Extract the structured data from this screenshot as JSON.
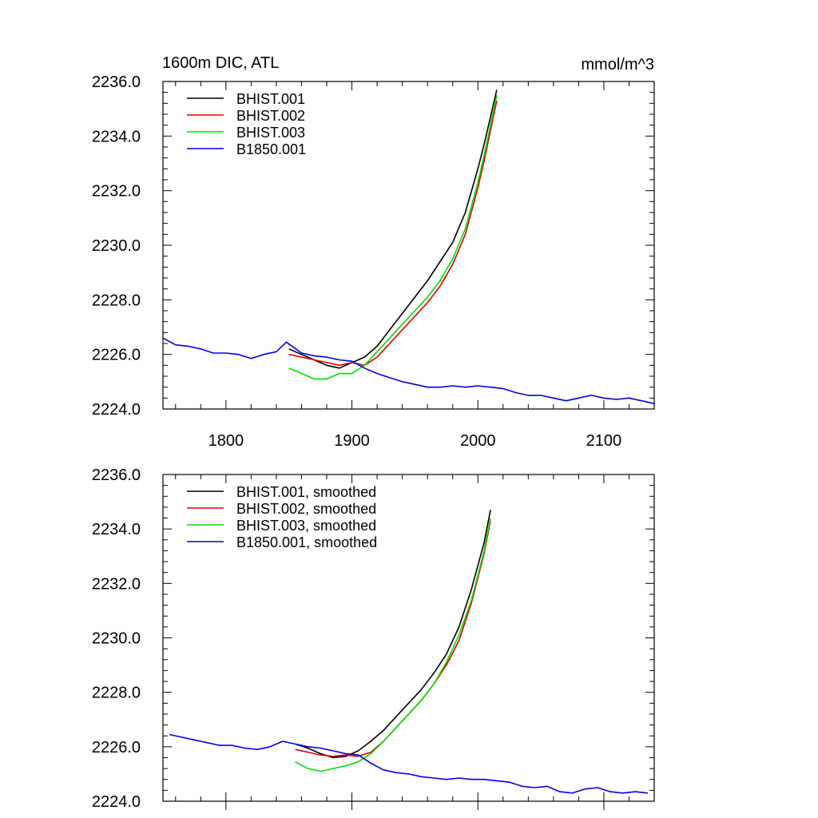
{
  "header": {
    "left_title": "1600m DIC, ATL",
    "right_title": "mmol/m^3"
  },
  "colors": {
    "BHIST.001": "#000000",
    "BHIST.002": "#e00000",
    "BHIST.003": "#00e000",
    "B1850.001": "#0000e0"
  },
  "chart_data": [
    {
      "type": "line",
      "title": "",
      "xlim": [
        1750,
        2140
      ],
      "ylim": [
        2224.0,
        2236.0
      ],
      "xticks": [
        1800,
        1900,
        2000,
        2100
      ],
      "xtick_labels": [
        "1800",
        "1900",
        "2000",
        "2100"
      ],
      "yticks": [
        2224.0,
        2226.0,
        2228.0,
        2230.0,
        2232.0,
        2234.0,
        2236.0
      ],
      "ytick_labels": [
        "2224.0",
        "2226.0",
        "2228.0",
        "2230.0",
        "2232.0",
        "2234.0",
        "2236.0"
      ],
      "legend": "top-left",
      "series": [
        {
          "name": "BHIST.001",
          "color": "#000000",
          "x": [
            1850,
            1860,
            1870,
            1880,
            1890,
            1900,
            1910,
            1920,
            1930,
            1940,
            1950,
            1960,
            1970,
            1980,
            1990,
            2000,
            2005,
            2010,
            2015
          ],
          "y": [
            2226.2,
            2226.0,
            2225.8,
            2225.6,
            2225.5,
            2225.7,
            2225.9,
            2226.3,
            2226.9,
            2227.5,
            2228.1,
            2228.7,
            2229.4,
            2230.1,
            2231.2,
            2232.8,
            2233.7,
            2234.7,
            2235.7
          ]
        },
        {
          "name": "BHIST.002",
          "color": "#e00000",
          "x": [
            1850,
            1860,
            1870,
            1880,
            1890,
            1900,
            1910,
            1920,
            1930,
            1940,
            1950,
            1960,
            1970,
            1980,
            1990,
            2000,
            2005,
            2010,
            2015
          ],
          "y": [
            2226.0,
            2225.9,
            2225.8,
            2225.7,
            2225.6,
            2225.7,
            2225.6,
            2225.9,
            2226.4,
            2226.9,
            2227.4,
            2227.9,
            2228.5,
            2229.3,
            2230.4,
            2232.1,
            2233.1,
            2234.2,
            2235.3
          ]
        },
        {
          "name": "BHIST.003",
          "color": "#00e000",
          "x": [
            1850,
            1860,
            1870,
            1880,
            1890,
            1900,
            1910,
            1920,
            1930,
            1940,
            1950,
            1960,
            1970,
            1980,
            1990,
            2000,
            2005,
            2010,
            2015
          ],
          "y": [
            2225.5,
            2225.3,
            2225.1,
            2225.1,
            2225.3,
            2225.3,
            2225.6,
            2226.1,
            2226.6,
            2227.1,
            2227.6,
            2228.1,
            2228.7,
            2229.5,
            2230.6,
            2232.3,
            2233.3,
            2234.4,
            2235.5
          ]
        },
        {
          "name": "B1850.001",
          "color": "#0000e0",
          "x": [
            1750,
            1760,
            1770,
            1780,
            1790,
            1800,
            1810,
            1820,
            1830,
            1840,
            1848,
            1860,
            1870,
            1880,
            1890,
            1900,
            1910,
            1920,
            1930,
            1940,
            1950,
            1960,
            1970,
            1980,
            1990,
            2000,
            2010,
            2020,
            2030,
            2040,
            2050,
            2060,
            2070,
            2080,
            2090,
            2100,
            2110,
            2120,
            2130,
            2140
          ],
          "y": [
            2226.6,
            2226.35,
            2226.3,
            2226.2,
            2226.05,
            2226.05,
            2226.0,
            2225.85,
            2226.0,
            2226.1,
            2226.45,
            2226.05,
            2225.95,
            2225.9,
            2225.8,
            2225.75,
            2225.5,
            2225.3,
            2225.15,
            2225.0,
            2224.9,
            2224.8,
            2224.8,
            2224.85,
            2224.8,
            2224.85,
            2224.8,
            2224.75,
            2224.6,
            2224.5,
            2224.5,
            2224.4,
            2224.3,
            2224.4,
            2224.5,
            2224.4,
            2224.35,
            2224.4,
            2224.3,
            2224.2
          ]
        }
      ]
    },
    {
      "type": "line",
      "title": "",
      "xlim": [
        1750,
        2140
      ],
      "ylim": [
        2224.0,
        2236.0
      ],
      "xticks": [
        1800,
        1900,
        2000,
        2100
      ],
      "yticks": [
        2224.0,
        2226.0,
        2228.0,
        2230.0,
        2232.0,
        2234.0,
        2236.0
      ],
      "ytick_labels": [
        "2224.0",
        "2226.0",
        "2228.0",
        "2230.0",
        "2232.0",
        "2234.0",
        "2236.0"
      ],
      "legend": "top-left",
      "series": [
        {
          "name": "BHIST.001, smoothed",
          "color": "#000000",
          "x": [
            1855,
            1865,
            1875,
            1885,
            1895,
            1905,
            1915,
            1925,
            1935,
            1945,
            1955,
            1965,
            1975,
            1985,
            1995,
            2005,
            2010
          ],
          "y": [
            2226.1,
            2225.95,
            2225.75,
            2225.6,
            2225.65,
            2225.85,
            2226.2,
            2226.6,
            2227.1,
            2227.6,
            2228.1,
            2228.7,
            2229.4,
            2230.4,
            2231.8,
            2233.5,
            2234.7
          ]
        },
        {
          "name": "BHIST.002, smoothed",
          "color": "#e00000",
          "x": [
            1855,
            1865,
            1875,
            1885,
            1895,
            1905,
            1915,
            1925,
            1935,
            1945,
            1955,
            1965,
            1975,
            1985,
            1995,
            2005,
            2010
          ],
          "y": [
            2225.9,
            2225.8,
            2225.7,
            2225.65,
            2225.7,
            2225.65,
            2225.8,
            2226.2,
            2226.7,
            2227.2,
            2227.7,
            2228.3,
            2229.0,
            2229.9,
            2231.3,
            2233.1,
            2234.3
          ]
        },
        {
          "name": "BHIST.003, smoothed",
          "color": "#00e000",
          "x": [
            1855,
            1865,
            1875,
            1885,
            1895,
            1905,
            1915,
            1925,
            1935,
            1945,
            1955,
            1965,
            1975,
            1985,
            1995,
            2005,
            2010
          ],
          "y": [
            2225.45,
            2225.2,
            2225.1,
            2225.2,
            2225.3,
            2225.45,
            2225.75,
            2226.2,
            2226.7,
            2227.2,
            2227.7,
            2228.3,
            2229.1,
            2230.1,
            2231.4,
            2233.2,
            2234.4
          ]
        },
        {
          "name": "B1850.001, smoothed",
          "color": "#0000e0",
          "x": [
            1755,
            1765,
            1775,
            1785,
            1795,
            1805,
            1815,
            1825,
            1835,
            1845,
            1855,
            1865,
            1875,
            1885,
            1895,
            1905,
            1915,
            1925,
            1935,
            1945,
            1955,
            1965,
            1975,
            1985,
            1995,
            2005,
            2015,
            2025,
            2035,
            2045,
            2055,
            2065,
            2075,
            2085,
            2095,
            2105,
            2115,
            2125,
            2135
          ],
          "y": [
            2226.45,
            2226.35,
            2226.25,
            2226.15,
            2226.05,
            2226.05,
            2225.95,
            2225.9,
            2226.0,
            2226.2,
            2226.1,
            2226.0,
            2225.95,
            2225.85,
            2225.75,
            2225.7,
            2225.4,
            2225.15,
            2225.05,
            2225.0,
            2224.9,
            2224.85,
            2224.8,
            2224.85,
            2224.8,
            2224.8,
            2224.75,
            2224.7,
            2224.55,
            2224.5,
            2224.55,
            2224.35,
            2224.3,
            2224.45,
            2224.5,
            2224.35,
            2224.3,
            2224.35,
            2224.3
          ]
        }
      ]
    }
  ]
}
